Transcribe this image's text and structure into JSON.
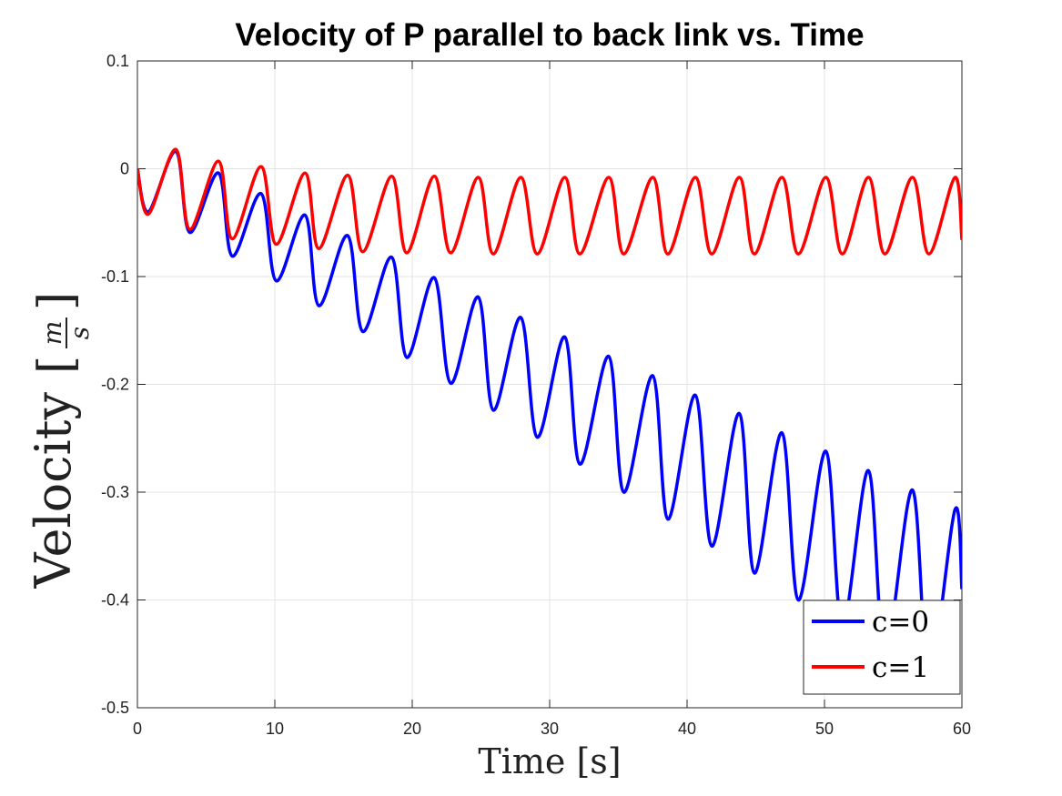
{
  "chart_data": {
    "type": "line",
    "title": "Velocity of P parallel to back link vs. Time",
    "xlabel": "Time [s]",
    "ylabel": "Velocity",
    "ylabel_unit_numerator": "m",
    "ylabel_unit_denominator": "s",
    "xlim": [
      0,
      60
    ],
    "ylim": [
      -0.5,
      0.1
    ],
    "xticks": [
      0,
      10,
      20,
      30,
      40,
      50,
      60
    ],
    "yticks": [
      0.1,
      0,
      -0.1,
      -0.2,
      -0.3,
      -0.4,
      -0.5
    ],
    "xtick_labels": [
      "0",
      "10",
      "20",
      "30",
      "40",
      "50",
      "60"
    ],
    "ytick_labels": [
      "0.1",
      "0",
      "-0.1",
      "-0.2",
      "-0.3",
      "-0.4",
      "-0.5"
    ],
    "grid": true,
    "legend_position": "bottom-right",
    "series": [
      {
        "name": "c=0",
        "color": "#0000ff",
        "x": [
          0,
          0.8,
          2.8,
          3.8,
          5.9,
          6.9,
          9.0,
          10.1,
          12.2,
          13.2,
          15.3,
          16.4,
          18.5,
          19.6,
          21.6,
          22.8,
          24.8,
          25.9,
          27.9,
          29.1,
          31.1,
          32.2,
          34.3,
          35.4,
          37.5,
          38.6,
          40.6,
          41.8,
          43.8,
          44.9,
          46.9,
          48.1,
          50.1,
          51.3,
          53.2,
          54.4,
          56.4,
          57.6,
          59.5,
          60.0
        ],
        "y": [
          0,
          -0.04,
          0.016,
          -0.059,
          -0.004,
          -0.081,
          -0.023,
          -0.104,
          -0.043,
          -0.127,
          -0.062,
          -0.151,
          -0.082,
          -0.175,
          -0.101,
          -0.199,
          -0.119,
          -0.224,
          -0.138,
          -0.249,
          -0.156,
          -0.274,
          -0.174,
          -0.3,
          -0.192,
          -0.325,
          -0.21,
          -0.35,
          -0.227,
          -0.375,
          -0.245,
          -0.4,
          -0.262,
          -0.425,
          -0.28,
          -0.45,
          -0.298,
          -0.47,
          -0.316,
          -0.39
        ]
      },
      {
        "name": "c=1",
        "color": "#ff0000",
        "x": [
          0,
          0.8,
          2.8,
          3.8,
          5.9,
          6.9,
          9.0,
          10.1,
          12.2,
          13.2,
          15.3,
          16.4,
          18.5,
          19.6,
          21.6,
          22.8,
          24.8,
          25.9,
          27.9,
          29.1,
          31.1,
          32.2,
          34.3,
          35.4,
          37.5,
          38.6,
          40.6,
          41.8,
          43.8,
          44.9,
          46.9,
          48.1,
          50.1,
          51.3,
          53.2,
          54.4,
          56.4,
          57.6,
          59.5,
          60.0
        ],
        "y": [
          0,
          -0.042,
          0.018,
          -0.056,
          0.007,
          -0.065,
          0.002,
          -0.07,
          -0.004,
          -0.074,
          -0.006,
          -0.077,
          -0.007,
          -0.078,
          -0.007,
          -0.078,
          -0.008,
          -0.079,
          -0.008,
          -0.079,
          -0.008,
          -0.079,
          -0.008,
          -0.079,
          -0.008,
          -0.079,
          -0.008,
          -0.079,
          -0.008,
          -0.079,
          -0.008,
          -0.079,
          -0.008,
          -0.079,
          -0.008,
          -0.079,
          -0.008,
          -0.079,
          -0.008,
          -0.066
        ]
      }
    ]
  }
}
